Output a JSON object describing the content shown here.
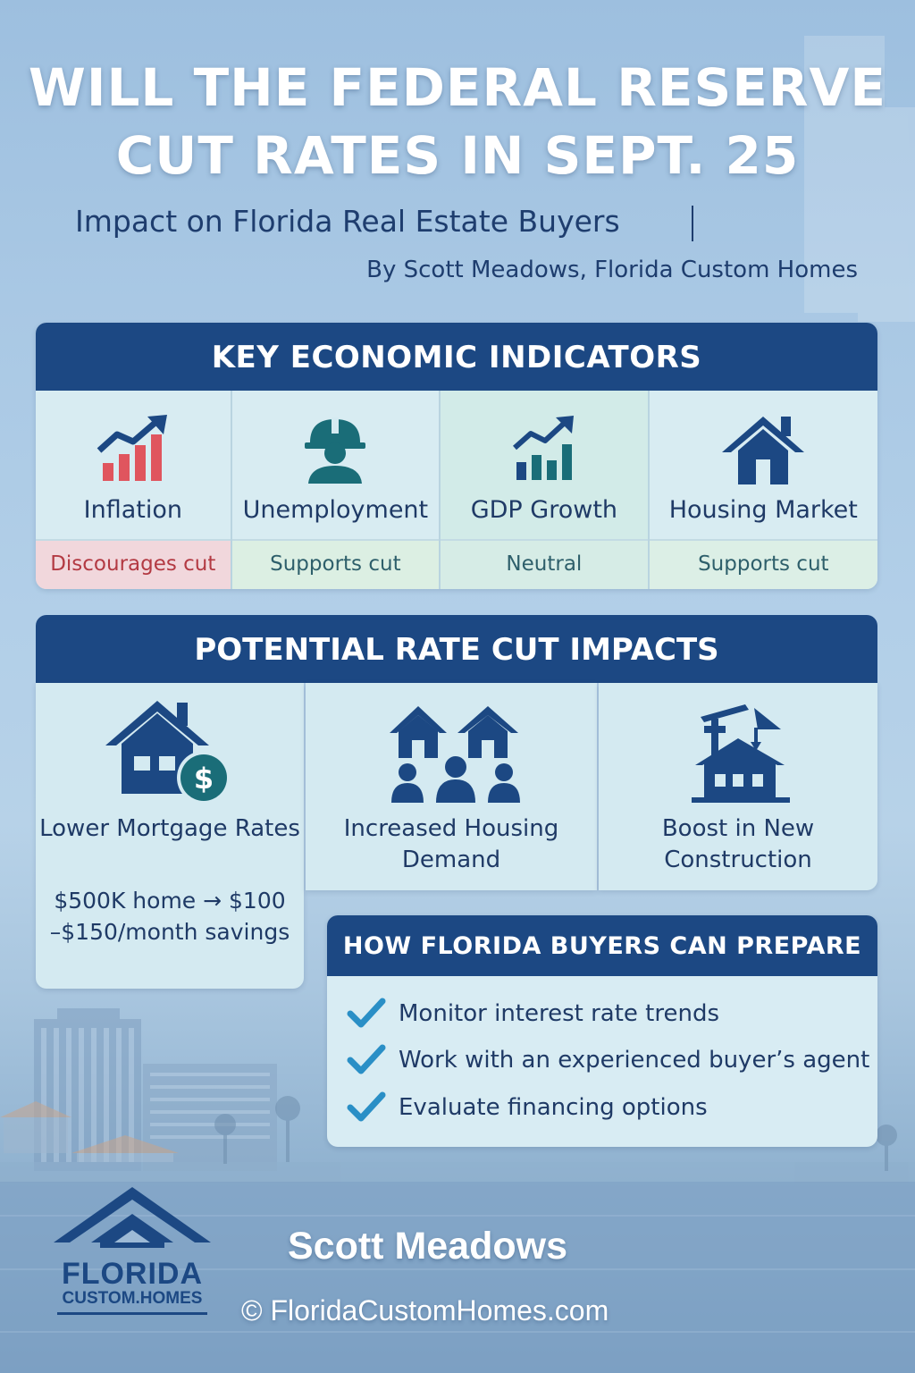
{
  "title": {
    "line1": "WILL THE FEDERAL RESERVE",
    "line2": "CUT RATES IN SEPT. 25"
  },
  "subtitle": "Impact on Florida Real Estate Buyers",
  "byline": "By Scott Meadows, Florida Custom Homes",
  "indicators": {
    "heading": "KEY ECONOMIC INDICATORS",
    "items": [
      {
        "label": "Inflation",
        "status": "Discourages cut",
        "icon": "rising-bar-chart-icon",
        "status_color": "#b33a43",
        "status_bg": "#f1d7dc"
      },
      {
        "label": "Unemployment",
        "status": "Supports cut",
        "icon": "construction-worker-icon",
        "status_color": "#2e5f6b",
        "status_bg": "#dcefe3"
      },
      {
        "label": "GDP Growth",
        "status": "Neutral",
        "icon": "growth-bar-chart-icon",
        "status_color": "#2e5f6b",
        "status_bg": "#d6ece6"
      },
      {
        "label": "Housing Market",
        "status": "Supports cut",
        "icon": "house-icon",
        "status_color": "#2e5f6b",
        "status_bg": "#dcefe6"
      }
    ]
  },
  "impacts": {
    "heading": "POTENTIAL RATE CUT IMPACTS",
    "items": [
      {
        "title": "Lower Mortgage Rates",
        "detail": "$500K home → $100 –$150/month savings",
        "icon": "house-dollar-icon"
      },
      {
        "title": "Increased Housing Demand",
        "icon": "houses-people-icon"
      },
      {
        "title": "Boost in New Construction",
        "icon": "house-crane-icon"
      }
    ]
  },
  "prepare": {
    "heading": "HOW FLORIDA BUYERS CAN PREPARE",
    "items": [
      "Monitor interest rate trends",
      "Work with an experienced buyer’s agent",
      "Evaluate financing options"
    ]
  },
  "logo": {
    "word1": "FLORIDA",
    "word2": "CUSTOM.HOMES"
  },
  "footer": {
    "name": "Scott Meadows",
    "website": "© FloridaCustomHomes.com"
  },
  "colors": {
    "navy": "#1c4883",
    "teal": "#1a6d78",
    "red": "#e0555e",
    "check": "#2a8fc6"
  }
}
